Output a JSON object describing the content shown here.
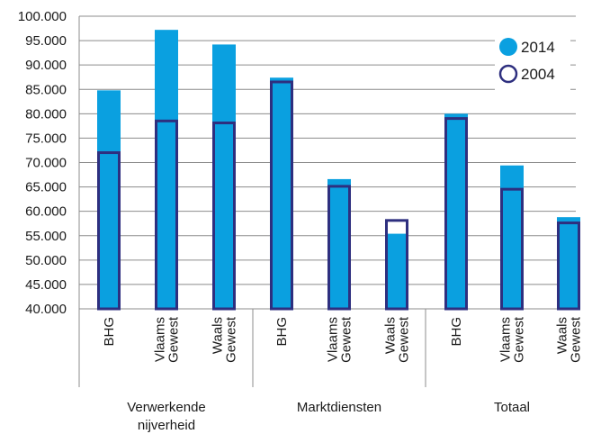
{
  "chart_data": {
    "type": "bar",
    "ylim": [
      40000,
      100000
    ],
    "y_ticks": [
      "40.000",
      "45.000",
      "50.000",
      "55.000",
      "60.000",
      "65.000",
      "70.000",
      "75.000",
      "80.000",
      "85.000",
      "90.000",
      "95.000",
      "100.000"
    ],
    "groups": [
      {
        "label": "Verwerkende nijverheid",
        "categories": [
          "BHG",
          "Vlaams Gewest",
          "Waals Gewest"
        ]
      },
      {
        "label": "Marktdiensten",
        "categories": [
          "BHG",
          "Vlaams Gewest",
          "Waals Gewest"
        ]
      },
      {
        "label": "Totaal",
        "categories": [
          "BHG",
          "Vlaams Gewest",
          "Waals Gewest"
        ]
      }
    ],
    "series": [
      {
        "name": "2014",
        "style": "filled",
        "values": [
          84800,
          97200,
          94200,
          87400,
          66600,
          55400,
          80000,
          69400,
          58800
        ]
      },
      {
        "name": "2004",
        "style": "outline",
        "values": [
          72300,
          78800,
          78400,
          86800,
          65400,
          58400,
          79300,
          64800,
          57900
        ]
      }
    ],
    "colors": {
      "fill": "#0aa0e0",
      "outline": "#2e2f7f",
      "grid": "#8c8c8c"
    },
    "legend_position": "top-right",
    "grid": true
  }
}
